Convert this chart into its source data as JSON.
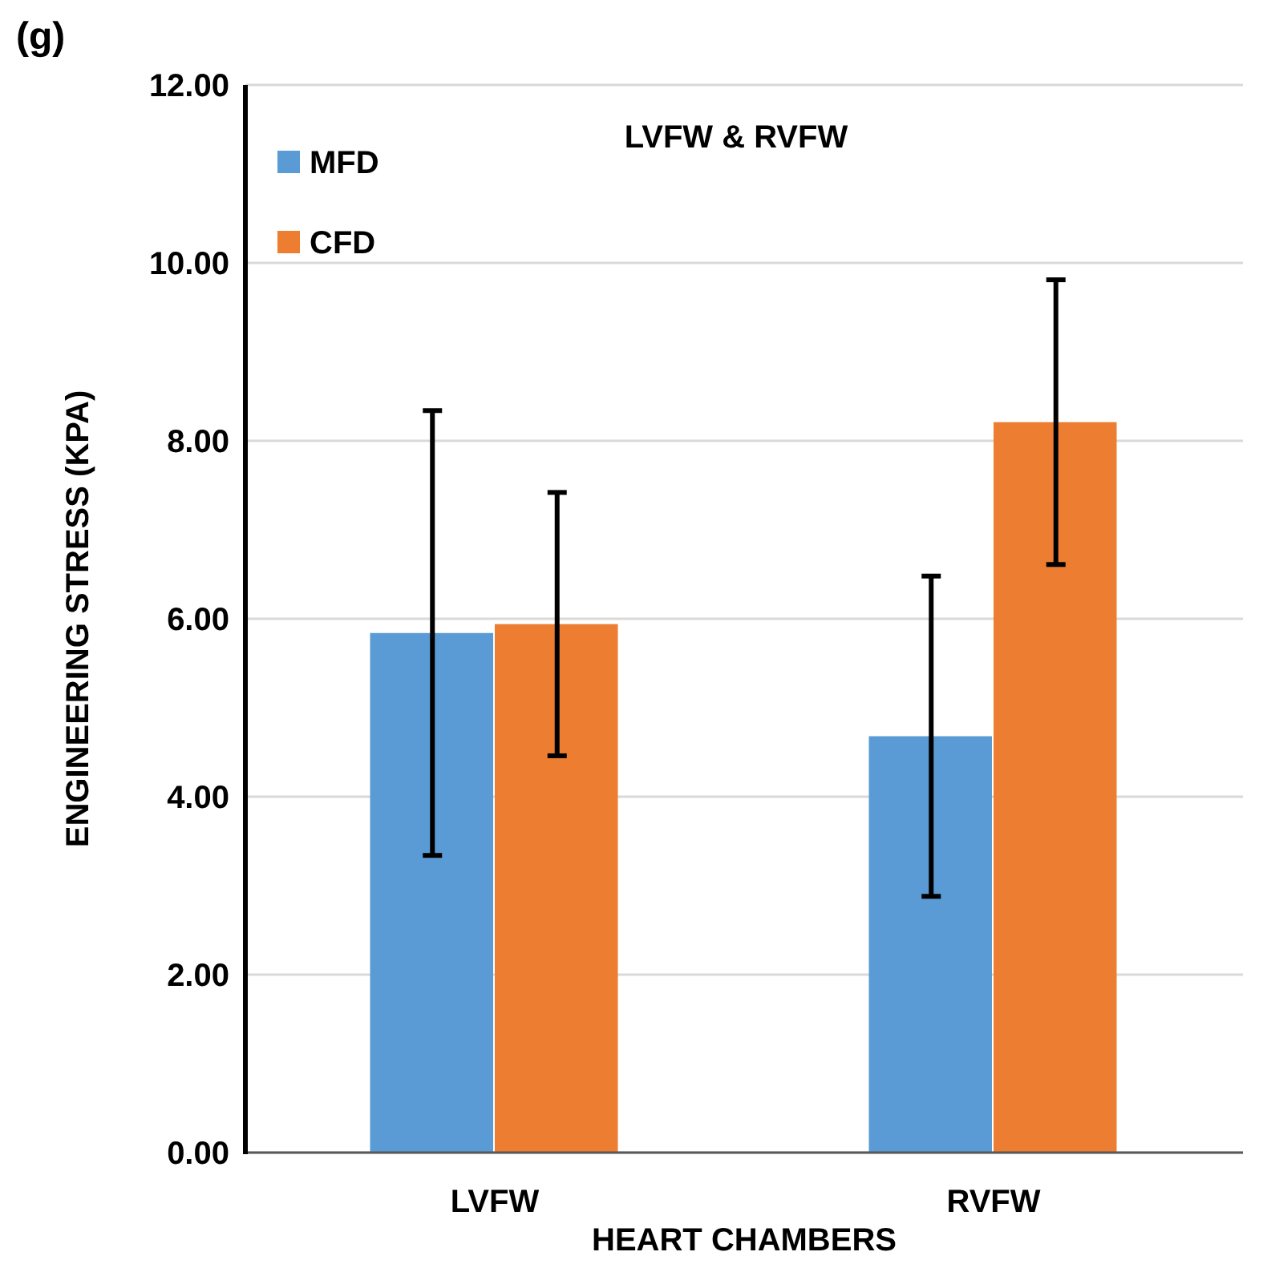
{
  "chart_data": {
    "type": "bar",
    "title": "LVFW & RVFW",
    "xlabel": "HEART CHAMBERS",
    "ylabel": "ENGINEERING STRESS (KPA)",
    "annotations": [
      "(g)"
    ],
    "categories": [
      "LVFW",
      "RVFW"
    ],
    "series": [
      {
        "name": "MFD",
        "color": "#5b9bd5",
        "values": [
          5.84,
          4.68
        ],
        "errors": [
          2.5,
          1.8
        ]
      },
      {
        "name": "CFD",
        "color": "#ed7d31",
        "values": [
          5.94,
          8.21
        ],
        "errors": [
          1.48,
          1.6
        ]
      }
    ],
    "ylim": [
      0,
      12
    ],
    "yticks": [
      {
        "value": 0,
        "label": "0.00"
      },
      {
        "value": 2,
        "label": "2.00"
      },
      {
        "value": 4,
        "label": "4.00"
      },
      {
        "value": 6,
        "label": "6.00"
      },
      {
        "value": 8,
        "label": "8.00"
      },
      {
        "value": 10,
        "label": "10.00"
      },
      {
        "value": 12,
        "label": "12.00"
      }
    ],
    "grid": "y",
    "legend": "top left"
  }
}
